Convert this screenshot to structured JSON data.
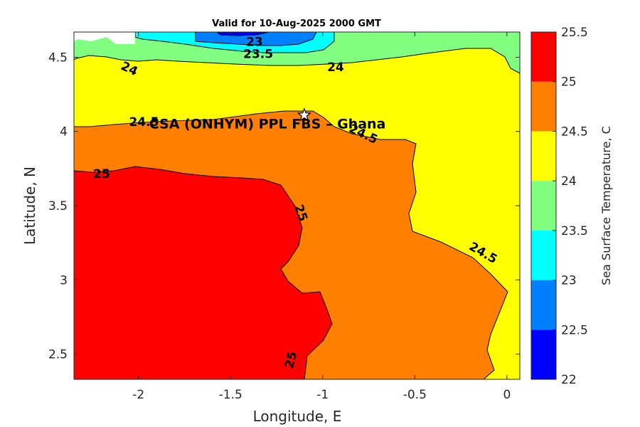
{
  "chart_data": {
    "type": "heatmap",
    "title": "Valid for 10-Aug-2025 2000 GMT",
    "xlabel": "Longitude, E",
    "ylabel": "Latitude, N",
    "xlim": [
      -2.35,
      0.07
    ],
    "ylim": [
      2.33,
      4.67
    ],
    "xticks": [
      "-2",
      "-1.5",
      "-1",
      "-0.5",
      "0"
    ],
    "xtick_values": [
      -2,
      -1.5,
      -1,
      -0.5,
      0
    ],
    "yticks": [
      "2.5",
      "3",
      "3.5",
      "4",
      "4.5"
    ],
    "ytick_values": [
      2.5,
      3,
      3.5,
      4,
      4.5
    ],
    "colorbar": {
      "label": "Sea Surface Temperature, C",
      "levels": [
        22,
        22.5,
        23,
        23.5,
        24,
        24.5,
        25,
        25.5
      ],
      "tick_labels": [
        "22",
        "22.5",
        "23",
        "23.5",
        "24",
        "24.5",
        "25",
        "25.5"
      ],
      "colors": [
        "#0000ff",
        "#0080ff",
        "#00ffff",
        "#80ff80",
        "#ffff00",
        "#ff8000",
        "#ff0000"
      ]
    },
    "contour_labels": [
      {
        "text": "23",
        "lon": -1.37,
        "lat": 4.6
      },
      {
        "text": "23.5",
        "lon": -1.35,
        "lat": 4.52
      },
      {
        "text": "24",
        "lon": -2.05,
        "lat": 4.42
      },
      {
        "text": "24",
        "lon": -0.93,
        "lat": 4.43
      },
      {
        "text": "24.5",
        "lon": -1.97,
        "lat": 4.06
      },
      {
        "text": "24.5",
        "lon": -0.78,
        "lat": 3.98
      },
      {
        "text": "24.5",
        "lon": -0.13,
        "lat": 3.18
      },
      {
        "text": "25",
        "lon": -2.2,
        "lat": 3.71
      },
      {
        "text": "25",
        "lon": -1.12,
        "lat": 3.45
      },
      {
        "text": "25",
        "lon": -1.17,
        "lat": 2.46
      }
    ],
    "site": {
      "name": "CSA (ONHYM) PPL FBS  – Ghana",
      "lon": -1.1,
      "lat": 4.11,
      "marker": "star"
    }
  }
}
